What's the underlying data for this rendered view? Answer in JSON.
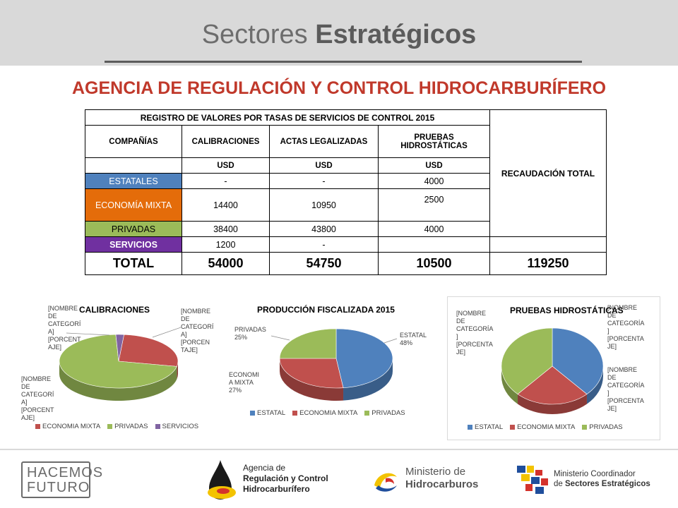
{
  "slide": {
    "title_light": "Sectores",
    "title_bold": "Estratégicos",
    "agency_title": "AGENCIA DE REGULACIÓN Y CONTROL HIDROCARBURÍFERO"
  },
  "table": {
    "caption": "REGISTRO DE VALORES POR TASAS DE SERVICIOS DE CONTROL  2015",
    "col_company": "COMPAÑÍAS",
    "col_calibraciones": "CALIBRACIONES",
    "col_actas": "ACTAS LEGALIZADAS",
    "col_pruebas": "PRUEBAS HIDROSTÁTICAS",
    "col_total": "RECAUDACIÓN TOTAL",
    "unit": "USD",
    "rows": [
      {
        "name": "ESTATALES",
        "calibraciones": "-",
        "actas": "-",
        "pruebas": "4000"
      },
      {
        "name": "ECONOMÍA MIXTA",
        "calibraciones": "14400",
        "actas": "10950",
        "pruebas": "2500"
      },
      {
        "name": "PRIVADAS",
        "calibraciones": "38400",
        "actas": "43800",
        "pruebas": "4000"
      },
      {
        "name": "SERVICIOS",
        "calibraciones": "1200",
        "actas": "-",
        "pruebas": ""
      }
    ],
    "total": {
      "label": "TOTAL",
      "calibraciones": "54000",
      "actas": "54750",
      "pruebas": "10500",
      "recaudacion": "119250"
    }
  },
  "colors": {
    "estatal": "#4f81bd",
    "economia_mixta": "#c0504d",
    "privadas": "#9bbb59",
    "servicios": "#8064a2",
    "accent_title": "#c0392b"
  },
  "chart_data": [
    {
      "type": "pie",
      "title": "CALIBRACIONES",
      "categories": [
        "ECONOMIA MIXTA",
        "PRIVADAS",
        "SERVICIOS"
      ],
      "values": [
        14400,
        38400,
        1200
      ],
      "slice_labels": [
        "[NOMBRE DE CATEGORÍ A] [PORCEN TAJE]",
        "[NOMBRE DE CATEGORÍ A] [PORCENT AJE]",
        "[NOMBRE DE CATEGORÍ A] [PORCENT AJE]"
      ],
      "legend": "bottom"
    },
    {
      "type": "pie",
      "title": "PRODUCCIÓN FISCALIZADA 2015",
      "categories": [
        "ESTATAL",
        "ECONOMIA MIXTA",
        "PRIVADAS"
      ],
      "values": [
        48,
        27,
        25
      ],
      "slice_labels": [
        "ESTATAL 48%",
        "ECONOMI A MIXTA 27%",
        "PRIVADAS 25%"
      ],
      "legend": "bottom"
    },
    {
      "type": "pie",
      "title": "PRUEBAS HIDROSTÁTICAS",
      "categories": [
        "ESTATAL",
        "ECONOMIA MIXTA",
        "PRIVADAS"
      ],
      "values": [
        4000,
        2500,
        4000
      ],
      "slice_labels": [
        "[NOMBRE DE CATEGORÍA ] [PORCENTA JE]",
        "[NOMBRE DE CATEGORÍA ] [PORCENTA JE]",
        "[NOMBRE DE CATEGORÍA ] [PORCENTA JE]"
      ],
      "legend": "bottom"
    }
  ],
  "footer": {
    "hacemos_line1": "HACEMOS",
    "hacemos_line2": "FUTURO",
    "arch_line1": "Agencia de",
    "arch_line2": "Regulación y Control",
    "arch_line3": "Hidrocarburífero",
    "min_line1": "Ministerio de",
    "min_line2": "Hidrocarburos",
    "coord_line1": "Ministerio Coordinador",
    "coord_line2_light": "de",
    "coord_line2_bold": "Sectores Estratégicos"
  }
}
